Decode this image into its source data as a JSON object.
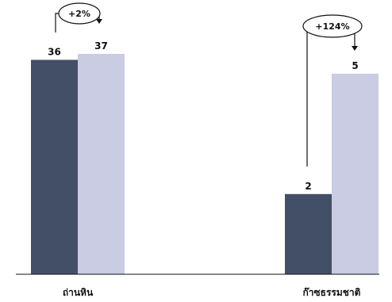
{
  "chart_data": {
    "type": "bar",
    "categories": [
      "ถ่านหิน",
      "ก๊าซธรรมชาติ"
    ],
    "series": [
      {
        "values": [
          36,
          2
        ],
        "color": "#434f66"
      },
      {
        "values": [
          37,
          5
        ],
        "color": "#c9cce3"
      }
    ],
    "data_labels": [
      [
        "36",
        "2"
      ],
      [
        "37",
        "5"
      ]
    ],
    "changes": [
      "+2%",
      "+124%"
    ],
    "axis_line": "#111111"
  }
}
